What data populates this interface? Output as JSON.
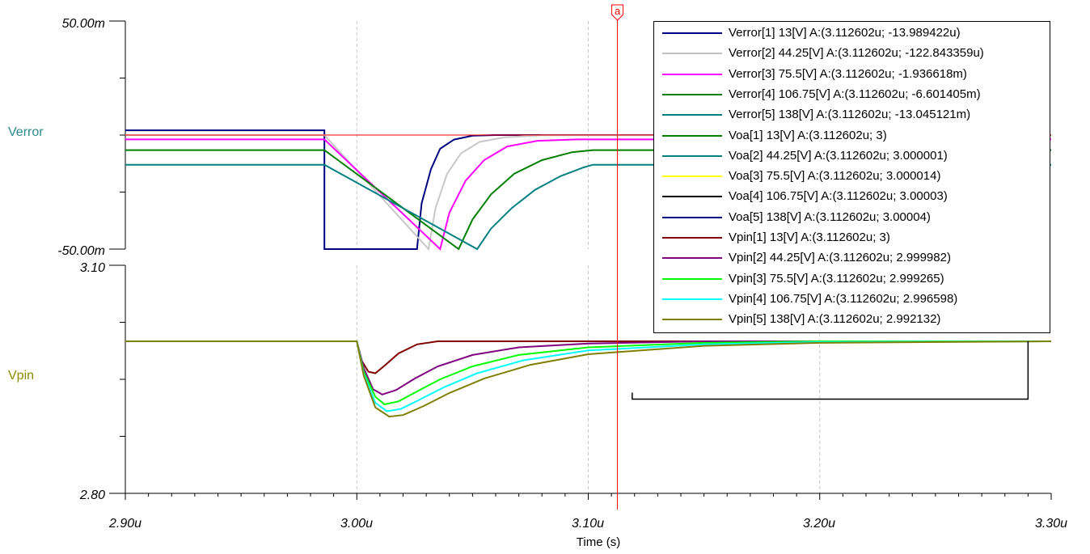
{
  "chart_data": [
    {
      "type": "line",
      "panel": "top",
      "ylabel": "Verror",
      "ylabel_color": "#2e8b8b",
      "ylim": [
        -0.05,
        0.05
      ],
      "ytick_labels": [
        "50.00m",
        "-50.00m"
      ],
      "xlim": [
        2.9,
        3.3
      ],
      "grid": true,
      "series": [
        {
          "name": "Verror[1]",
          "color": "#000080",
          "points": [
            [
              2.9,
              0.0021
            ],
            [
              2.986,
              0.0021
            ],
            [
              2.986,
              -0.05
            ],
            [
              3.026,
              -0.05
            ],
            [
              3.028,
              -0.03
            ],
            [
              3.032,
              -0.015
            ],
            [
              3.036,
              -0.006
            ],
            [
              3.042,
              -0.002
            ],
            [
              3.05,
              -0.0003
            ],
            [
              3.06,
              0
            ],
            [
              3.3,
              0
            ]
          ]
        },
        {
          "name": "Verror[2]",
          "color": "#c8c8c8",
          "points": [
            [
              2.9,
              0
            ],
            [
              2.986,
              0
            ],
            [
              3.031,
              -0.05
            ],
            [
              3.034,
              -0.032
            ],
            [
              3.039,
              -0.017
            ],
            [
              3.045,
              -0.008
            ],
            [
              3.053,
              -0.003
            ],
            [
              3.064,
              -0.001
            ],
            [
              3.08,
              -0.0001
            ],
            [
              3.3,
              -0.0001
            ]
          ]
        },
        {
          "name": "Verror[3]",
          "color": "#ff00ff",
          "points": [
            [
              2.9,
              -0.0019
            ],
            [
              2.986,
              -0.0019
            ],
            [
              3.036,
              -0.05
            ],
            [
              3.04,
              -0.034
            ],
            [
              3.047,
              -0.02
            ],
            [
              3.055,
              -0.011
            ],
            [
              3.065,
              -0.005
            ],
            [
              3.078,
              -0.0025
            ],
            [
              3.095,
              -0.0019
            ],
            [
              3.3,
              -0.0019
            ]
          ]
        },
        {
          "name": "Verror[4]",
          "color": "#008000",
          "points": [
            [
              2.9,
              -0.0066
            ],
            [
              2.986,
              -0.0066
            ],
            [
              3.044,
              -0.05
            ],
            [
              3.05,
              -0.037
            ],
            [
              3.058,
              -0.026
            ],
            [
              3.068,
              -0.017
            ],
            [
              3.08,
              -0.011
            ],
            [
              3.093,
              -0.0075
            ],
            [
              3.102,
              -0.0066
            ],
            [
              3.3,
              -0.0066
            ]
          ]
        },
        {
          "name": "Verror[5]",
          "color": "#008080",
          "points": [
            [
              2.9,
              -0.013
            ],
            [
              2.986,
              -0.013
            ],
            [
              3.052,
              -0.05
            ],
            [
              3.058,
              -0.041
            ],
            [
              3.067,
              -0.032
            ],
            [
              3.077,
              -0.024
            ],
            [
              3.088,
              -0.018
            ],
            [
              3.098,
              -0.0142
            ],
            [
              3.102,
              -0.013
            ],
            [
              3.3,
              -0.013
            ]
          ]
        }
      ]
    },
    {
      "type": "line",
      "panel": "bottom",
      "ylabel": "Vpin",
      "ylabel_color": "#8b8b00",
      "ylim": [
        2.8,
        3.1
      ],
      "ytick_labels": [
        "3.10",
        "2.80"
      ],
      "xlim": [
        2.9,
        3.3
      ],
      "xtick_labels": [
        "2.90u",
        "3.00u",
        "3.10u",
        "3.20u",
        "3.30u"
      ],
      "xlabel": "Time (s)",
      "grid": true,
      "series": [
        {
          "name": "Vpin[1]",
          "color": "#800000",
          "points": [
            [
              2.9,
              3.0
            ],
            [
              3.0,
              3.0
            ],
            [
              3.002,
              2.975
            ],
            [
              3.005,
              2.96
            ],
            [
              3.008,
              2.958
            ],
            [
              3.012,
              2.968
            ],
            [
              3.018,
              2.984
            ],
            [
              3.026,
              2.996
            ],
            [
              3.035,
              3.0
            ],
            [
              3.3,
              3.0
            ]
          ]
        },
        {
          "name": "Vpin[2]",
          "color": "#800080",
          "points": [
            [
              2.9,
              3.0
            ],
            [
              3.0,
              3.0
            ],
            [
              3.003,
              2.965
            ],
            [
              3.007,
              2.937
            ],
            [
              3.011,
              2.93
            ],
            [
              3.017,
              2.936
            ],
            [
              3.025,
              2.951
            ],
            [
              3.035,
              2.967
            ],
            [
              3.05,
              2.982
            ],
            [
              3.07,
              2.992
            ],
            [
              3.1,
              2.997
            ],
            [
              3.15,
              3.0
            ],
            [
              3.3,
              3.0
            ]
          ]
        },
        {
          "name": "Vpin[3]",
          "color": "#00ff00",
          "points": [
            [
              2.9,
              3.0
            ],
            [
              3.0,
              3.0
            ],
            [
              3.003,
              2.96
            ],
            [
              3.008,
              2.927
            ],
            [
              3.012,
              2.917
            ],
            [
              3.018,
              2.921
            ],
            [
              3.026,
              2.934
            ],
            [
              3.036,
              2.95
            ],
            [
              3.05,
              2.967
            ],
            [
              3.07,
              2.982
            ],
            [
              3.1,
              2.992
            ],
            [
              3.15,
              2.998
            ],
            [
              3.2,
              3.0
            ],
            [
              3.3,
              3.0
            ]
          ]
        },
        {
          "name": "Vpin[4]",
          "color": "#00ffff",
          "points": [
            [
              2.9,
              3.0
            ],
            [
              3.0,
              3.0
            ],
            [
              3.003,
              2.957
            ],
            [
              3.008,
              2.919
            ],
            [
              3.013,
              2.908
            ],
            [
              3.019,
              2.911
            ],
            [
              3.027,
              2.923
            ],
            [
              3.038,
              2.94
            ],
            [
              3.052,
              2.958
            ],
            [
              3.072,
              2.975
            ],
            [
              3.1,
              2.988
            ],
            [
              3.15,
              2.996
            ],
            [
              3.2,
              2.999
            ],
            [
              3.3,
              3.0
            ]
          ]
        },
        {
          "name": "Vpin[5]",
          "color": "#808000",
          "points": [
            [
              2.9,
              3.0
            ],
            [
              3.0,
              3.0
            ],
            [
              3.003,
              2.955
            ],
            [
              3.008,
              2.913
            ],
            [
              3.014,
              2.901
            ],
            [
              3.02,
              2.903
            ],
            [
              3.029,
              2.915
            ],
            [
              3.04,
              2.932
            ],
            [
              3.055,
              2.951
            ],
            [
              3.075,
              2.969
            ],
            [
              3.1,
              2.983
            ],
            [
              3.15,
              2.994
            ],
            [
              3.2,
              2.998
            ],
            [
              3.3,
              3.0
            ]
          ]
        }
      ],
      "annotation_bracket": {
        "x_start": 3.119,
        "x_end": 3.29,
        "y_low": 2.924,
        "y_high": 3.0
      }
    }
  ],
  "cursor": {
    "label": "a",
    "x": 3.112602,
    "y_verror": 0.0,
    "color": "#ff0000"
  },
  "legend": [
    {
      "color": "#000080",
      "text": "Verror[1]  13[V] A:(3.112602u; -13.989422u)"
    },
    {
      "color": "#c0c0c0",
      "text": "Verror[2]  44.25[V] A:(3.112602u; -122.843359u)"
    },
    {
      "color": "#ff00ff",
      "text": "Verror[3]  75.5[V] A:(3.112602u; -1.936618m)"
    },
    {
      "color": "#008000",
      "text": "Verror[4]  106.75[V] A:(3.112602u; -6.601405m)"
    },
    {
      "color": "#008080",
      "text": "Verror[5]  138[V] A:(3.112602u; -13.045121m)"
    },
    {
      "color": "#008000",
      "text": "Voa[1]  13[V] A:(3.112602u; 3)"
    },
    {
      "color": "#008080",
      "text": "Voa[2]  44.25[V] A:(3.112602u; 3.000001)"
    },
    {
      "color": "#ffff00",
      "text": "Voa[3]  75.5[V] A:(3.112602u; 3.000014)"
    },
    {
      "color": "#000000",
      "text": "Voa[4]  106.75[V] A:(3.112602u; 3.00003)"
    },
    {
      "color": "#000080",
      "text": "Voa[5]  138[V] A:(3.112602u; 3.00004)"
    },
    {
      "color": "#800000",
      "text": "Vpin[1]  13[V] A:(3.112602u; 3)"
    },
    {
      "color": "#800080",
      "text": "Vpin[2]  44.25[V] A:(3.112602u; 2.999982)"
    },
    {
      "color": "#00ff00",
      "text": "Vpin[3]  75.5[V] A:(3.112602u; 2.999265)"
    },
    {
      "color": "#00ffff",
      "text": "Vpin[4]  106.75[V] A:(3.112602u; 2.996598)"
    },
    {
      "color": "#808000",
      "text": "Vpin[5]  138[V] A:(3.112602u; 2.992132)"
    }
  ]
}
